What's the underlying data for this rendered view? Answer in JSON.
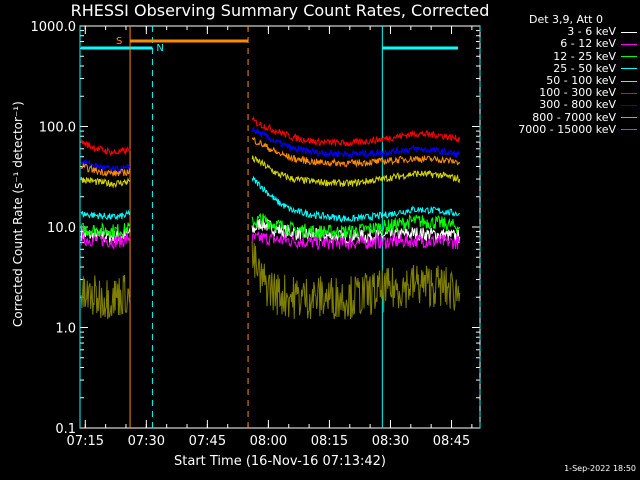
{
  "title": "RHESSI Observing Summary Count Rates, Corrected",
  "footer": "1-Sep-2022 18:50",
  "legend": {
    "header": "Det 3,9, Att 0",
    "entries": [
      {
        "label": "3 - 6 keV",
        "color": "#ffffff"
      },
      {
        "label": "6 - 12 keV",
        "color": "#ff00ff"
      },
      {
        "label": "12 - 25 keV",
        "color": "#00ff00"
      },
      {
        "label": "25 - 50 keV",
        "color": "#00ffff"
      },
      {
        "label": "50 - 100 keV",
        "color": "#d8d800"
      },
      {
        "label": "100 - 300 keV",
        "color": "#ff0000"
      },
      {
        "label": "300 - 800 keV",
        "color": "#0000ff"
      },
      {
        "label": "800 - 7000 keV",
        "color": "#ff8c00"
      },
      {
        "label": "7000 - 15000 keV",
        "color": "#808000"
      }
    ]
  },
  "chart_data": {
    "type": "line",
    "title": "RHESSI Observing Summary Count Rates, Corrected",
    "xlabel": "Start Time (16-Nov-16 07:13:42)",
    "ylabel": "Corrected Count Rate (s⁻¹ detector⁻¹)",
    "y_scale": "log",
    "ylim": [
      0.1,
      1000
    ],
    "xlim": [
      "07:13:42",
      "08:52:00"
    ],
    "x_ticks": [
      "07:15",
      "07:30",
      "07:45",
      "08:00",
      "08:15",
      "08:30",
      "08:45"
    ],
    "y_ticks": [
      "0.1",
      "1.0",
      "10.0",
      "100.0",
      "1000.0"
    ],
    "intervals": {
      "night": [
        [
          "07:13:42",
          "07:31:30"
        ],
        [
          "08:28:00",
          "08:52:00"
        ]
      ],
      "saa": [
        [
          "07:26:00",
          "07:55:00"
        ]
      ]
    },
    "interval_labels": {
      "saa": "S",
      "night": "N"
    },
    "series": [
      {
        "name": "3 - 6 keV",
        "color": "#ffffff",
        "segments": [
          {
            "x": [
              "07:14",
              "07:18",
              "07:22",
              "07:25",
              "07:26"
            ],
            "y": [
              8.5,
              8.2,
              8.0,
              8.3,
              9.0
            ]
          },
          {
            "x": [
              "07:56",
              "07:58",
              "08:02",
              "08:06",
              "08:12",
              "08:20",
              "08:28",
              "08:36",
              "08:42",
              "08:47"
            ],
            "y": [
              9.0,
              11.0,
              9.5,
              8.8,
              8.2,
              8.0,
              8.2,
              8.6,
              8.4,
              8.0
            ]
          }
        ]
      },
      {
        "name": "6 - 12 keV",
        "color": "#ff00ff",
        "segments": [
          {
            "x": [
              "07:14",
              "07:18",
              "07:22",
              "07:25",
              "07:26"
            ],
            "y": [
              7.5,
              7.5,
              7.2,
              7.4,
              8.0
            ]
          },
          {
            "x": [
              "07:56",
              "07:58",
              "08:02",
              "08:06",
              "08:12",
              "08:20",
              "08:28",
              "08:36",
              "08:42",
              "08:47"
            ],
            "y": [
              7.5,
              7.8,
              7.5,
              7.3,
              7.0,
              7.0,
              7.1,
              7.3,
              7.2,
              7.0
            ]
          }
        ]
      },
      {
        "name": "12 - 25 keV",
        "color": "#00ff00",
        "segments": [
          {
            "x": [
              "07:14",
              "07:18",
              "07:22",
              "07:25",
              "07:26"
            ],
            "y": [
              9.5,
              9.3,
              9.2,
              9.4,
              10.0
            ]
          },
          {
            "x": [
              "07:56",
              "07:58",
              "08:02",
              "08:06",
              "08:12",
              "08:20",
              "08:28",
              "08:36",
              "08:42",
              "08:47"
            ],
            "y": [
              11.0,
              12.0,
              10.5,
              9.5,
              9.0,
              9.0,
              10.0,
              11.5,
              11.0,
              10.0
            ]
          }
        ]
      },
      {
        "name": "25 - 50 keV",
        "color": "#00ffff",
        "segments": [
          {
            "x": [
              "07:14",
              "07:18",
              "07:22",
              "07:25",
              "07:26"
            ],
            "y": [
              13.5,
              13.0,
              12.5,
              13.0,
              14.0
            ]
          },
          {
            "x": [
              "07:56",
              "07:58",
              "08:02",
              "08:06",
              "08:12",
              "08:20",
              "08:28",
              "08:36",
              "08:42",
              "08:47"
            ],
            "y": [
              30.0,
              26.0,
              18.0,
              14.5,
              13.0,
              12.0,
              13.0,
              15.0,
              14.5,
              13.5
            ]
          }
        ]
      },
      {
        "name": "50 - 100 keV",
        "color": "#d8d800",
        "segments": [
          {
            "x": [
              "07:14",
              "07:18",
              "07:22",
              "07:25",
              "07:26"
            ],
            "y": [
              30.0,
              28.0,
              27.0,
              28.0,
              29.0
            ]
          },
          {
            "x": [
              "07:56",
              "07:58",
              "08:02",
              "08:06",
              "08:12",
              "08:20",
              "08:28",
              "08:36",
              "08:42",
              "08:47"
            ],
            "y": [
              48.0,
              44.0,
              34.0,
              30.0,
              28.0,
              27.0,
              30.0,
              34.0,
              33.0,
              30.0
            ]
          }
        ]
      },
      {
        "name": "100 - 300 keV",
        "color": "#ff0000",
        "segments": [
          {
            "x": [
              "07:14",
              "07:18",
              "07:22",
              "07:25",
              "07:26"
            ],
            "y": [
              70.0,
              60.0,
              55.0,
              57.0,
              60.0
            ]
          },
          {
            "x": [
              "07:56",
              "07:58",
              "08:02",
              "08:06",
              "08:12",
              "08:20",
              "08:28",
              "08:36",
              "08:42",
              "08:47"
            ],
            "y": [
              115.0,
              105.0,
              90.0,
              78.0,
              70.0,
              68.0,
              75.0,
              85.0,
              82.0,
              75.0
            ]
          }
        ]
      },
      {
        "name": "300 - 800 keV",
        "color": "#0000ff",
        "segments": [
          {
            "x": [
              "07:14",
              "07:18",
              "07:22",
              "07:25",
              "07:26"
            ],
            "y": [
              45.0,
              40.0,
              37.0,
              38.0,
              40.0
            ]
          },
          {
            "x": [
              "07:56",
              "07:58",
              "08:02",
              "08:06",
              "08:12",
              "08:20",
              "08:28",
              "08:36",
              "08:42",
              "08:47"
            ],
            "y": [
              95.0,
              85.0,
              70.0,
              60.0,
              55.0,
              53.0,
              55.0,
              60.0,
              57.0,
              52.0
            ]
          }
        ]
      },
      {
        "name": "800 - 7000 keV",
        "color": "#ff8c00",
        "segments": [
          {
            "x": [
              "07:14",
              "07:18",
              "07:22",
              "07:25",
              "07:26"
            ],
            "y": [
              40.0,
              36.0,
              34.0,
              35.0,
              36.0
            ]
          },
          {
            "x": [
              "07:56",
              "07:58",
              "08:02",
              "08:06",
              "08:12",
              "08:20",
              "08:28",
              "08:36",
              "08:42",
              "08:47"
            ],
            "y": [
              75.0,
              68.0,
              55.0,
              48.0,
              44.0,
              43.0,
              45.0,
              48.0,
              47.0,
              44.0
            ]
          }
        ]
      },
      {
        "name": "7000 - 15000 keV",
        "color": "#808000",
        "segments": [
          {
            "x": [
              "07:14",
              "07:18",
              "07:22",
              "07:25",
              "07:26"
            ],
            "y": [
              2.0,
              2.0,
              2.0,
              2.2,
              2.0
            ]
          },
          {
            "x": [
              "07:56",
              "07:58",
              "08:02",
              "08:06",
              "08:12",
              "08:20",
              "08:28",
              "08:36",
              "08:42",
              "08:47"
            ],
            "y": [
              5.0,
              3.0,
              2.2,
              2.0,
              2.0,
              2.0,
              2.3,
              2.7,
              2.6,
              2.2
            ]
          }
        ]
      }
    ]
  }
}
